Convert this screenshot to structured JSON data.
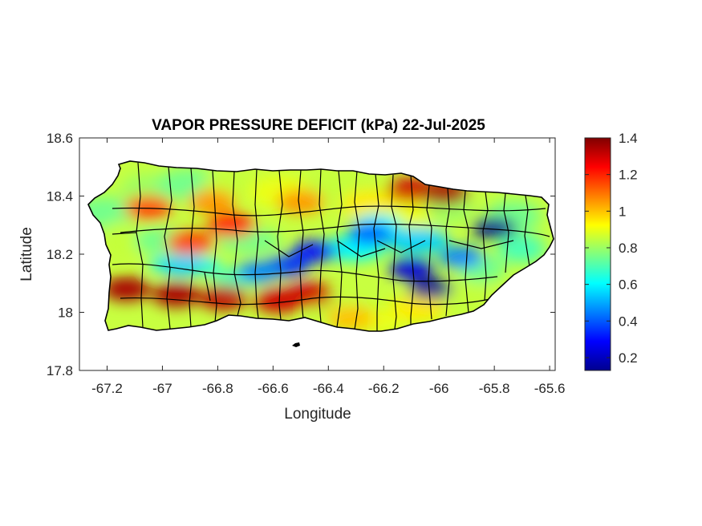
{
  "chart_data": {
    "type": "heatmap",
    "title": "VAPOR PRESSURE DEFICIT (kPa) 22-Jul-2025",
    "xlabel": "Longitude",
    "ylabel": "Latitude",
    "xlim": [
      -67.3,
      -65.58
    ],
    "ylim": [
      17.8,
      18.6
    ],
    "xticks": [
      -67.2,
      -67,
      -66.8,
      -66.6,
      -66.4,
      -66.2,
      -66,
      -65.8,
      -65.6
    ],
    "xtick_labels": [
      "-67.2",
      "-67",
      "-66.8",
      "-66.6",
      "-66.4",
      "-66.2",
      "-66",
      "-65.8",
      "-65.6"
    ],
    "yticks": [
      17.8,
      18,
      18.2,
      18.4,
      18.6
    ],
    "ytick_labels": [
      "17.8",
      "18",
      "18.2",
      "18.4",
      "18.6"
    ],
    "colorbar": {
      "label": "",
      "colormap": "jet",
      "lim": [
        0.13,
        1.4
      ],
      "ticks": [
        0.2,
        0.4,
        0.6,
        0.8,
        1,
        1.2,
        1.4
      ],
      "tick_labels": [
        "0.2",
        "0.4",
        "0.6",
        "0.8",
        "1",
        "1.2",
        "1.4"
      ]
    },
    "region": "Puerto Rico (municipal boundaries)",
    "hotspots": [
      {
        "lon": -67.13,
        "lat": 18.08,
        "vpd": 1.35
      },
      {
        "lon": -66.95,
        "lat": 18.06,
        "vpd": 1.35
      },
      {
        "lon": -66.78,
        "lat": 18.05,
        "vpd": 1.32
      },
      {
        "lon": -66.58,
        "lat": 18.04,
        "vpd": 1.3
      },
      {
        "lon": -66.47,
        "lat": 18.06,
        "vpd": 1.3
      },
      {
        "lon": -66.32,
        "lat": 17.98,
        "vpd": 1.0
      },
      {
        "lon": -66.1,
        "lat": 18.42,
        "vpd": 1.3
      },
      {
        "lon": -65.98,
        "lat": 18.41,
        "vpd": 1.35
      },
      {
        "lon": -66.75,
        "lat": 18.3,
        "vpd": 1.2
      },
      {
        "lon": -67.05,
        "lat": 18.36,
        "vpd": 1.15
      },
      {
        "lon": -66.9,
        "lat": 18.24,
        "vpd": 1.15
      },
      {
        "lon": -66.82,
        "lat": 18.38,
        "vpd": 1.05
      },
      {
        "lon": -66.5,
        "lat": 18.38,
        "vpd": 1.05
      }
    ],
    "lowspots": [
      {
        "lon": -65.8,
        "lat": 18.29,
        "vpd": 0.15
      },
      {
        "lon": -66.03,
        "lat": 18.08,
        "vpd": 0.15
      },
      {
        "lon": -66.1,
        "lat": 18.15,
        "vpd": 0.25
      },
      {
        "lon": -66.45,
        "lat": 18.21,
        "vpd": 0.3
      },
      {
        "lon": -66.55,
        "lat": 18.16,
        "vpd": 0.35
      },
      {
        "lon": -66.65,
        "lat": 18.14,
        "vpd": 0.45
      },
      {
        "lon": -66.25,
        "lat": 18.27,
        "vpd": 0.4
      },
      {
        "lon": -65.92,
        "lat": 18.19,
        "vpd": 0.45
      },
      {
        "lon": -66.93,
        "lat": 18.16,
        "vpd": 0.55
      }
    ]
  }
}
